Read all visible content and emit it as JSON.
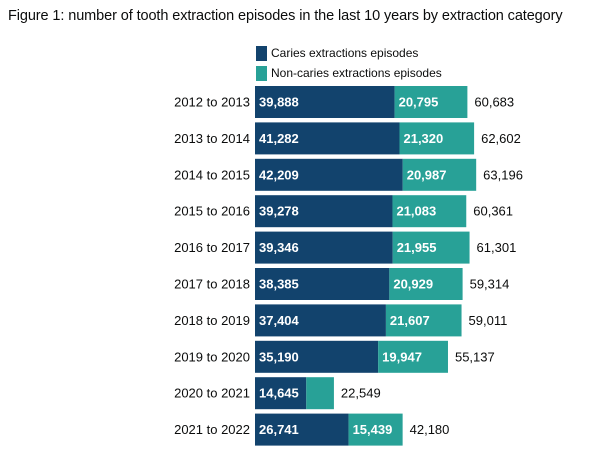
{
  "chart_data": {
    "type": "bar",
    "orientation": "horizontal",
    "stacked": true,
    "title": "Figure 1: number of tooth extraction episodes in the last 10 years by extraction category",
    "categories": [
      "2012 to 2013",
      "2013 to 2014",
      "2014 to 2015",
      "2015 to 2016",
      "2016 to 2017",
      "2017 to 2018",
      "2018 to 2019",
      "2019 to 2020",
      "2020 to 2021",
      "2021 to 2022"
    ],
    "series": [
      {
        "name": "Caries extractions episodes",
        "color": "#12436d",
        "values": [
          39888,
          41282,
          42209,
          39278,
          39346,
          38385,
          37404,
          35190,
          14645,
          26741
        ],
        "labels": [
          "39,888",
          "41,282",
          "42,209",
          "39,278",
          "39,346",
          "38,385",
          "37,404",
          "35,190",
          "14,645",
          "26,741"
        ]
      },
      {
        "name": "Non-caries extractions episodes",
        "color": "#28a197",
        "values": [
          20795,
          21320,
          20987,
          21083,
          21955,
          20929,
          21607,
          19947,
          7904,
          15439
        ],
        "labels": [
          "20,795",
          "21,320",
          "20,987",
          "21,083",
          "21,955",
          "20,929",
          "21,607",
          "19,947",
          "",
          "15,439"
        ]
      }
    ],
    "totals": [
      60683,
      62602,
      63196,
      60361,
      61301,
      59314,
      59011,
      55137,
      22549,
      42180
    ],
    "total_labels": [
      "60,683",
      "62,602",
      "63,196",
      "60,361",
      "61,301",
      "59,314",
      "59,011",
      "55,137",
      "22,549",
      "42,180"
    ],
    "xlim": [
      0,
      80000
    ],
    "grid": false,
    "legend": "top-left of plot"
  }
}
